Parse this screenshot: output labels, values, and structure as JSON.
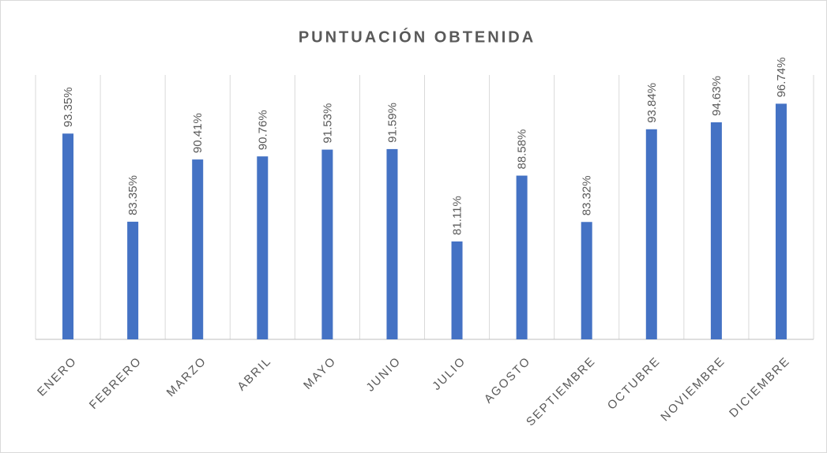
{
  "chart_data": {
    "type": "bar",
    "title": "PUNTUACIÓN OBTENIDA",
    "categories": [
      "ENERO",
      "FEBRERO",
      "MARZO",
      "ABRIL",
      "MAYO",
      "JUNIO",
      "JULIO",
      "AGOSTO",
      "SEPTIEMBRE",
      "OCTUBRE",
      "NOVIEMBRE",
      "DICIEMBRE"
    ],
    "values": [
      93.35,
      83.35,
      90.41,
      90.76,
      91.53,
      91.59,
      81.11,
      88.58,
      83.32,
      93.84,
      94.63,
      96.74
    ],
    "value_labels": [
      "93.35%",
      "83.35%",
      "90.41%",
      "90.76%",
      "91.53%",
      "91.59%",
      "81.11%",
      "88.58%",
      "83.32%",
      "93.84%",
      "94.63%",
      "96.74%"
    ],
    "color": "#4472c4",
    "ylim": [
      70,
      100
    ]
  }
}
